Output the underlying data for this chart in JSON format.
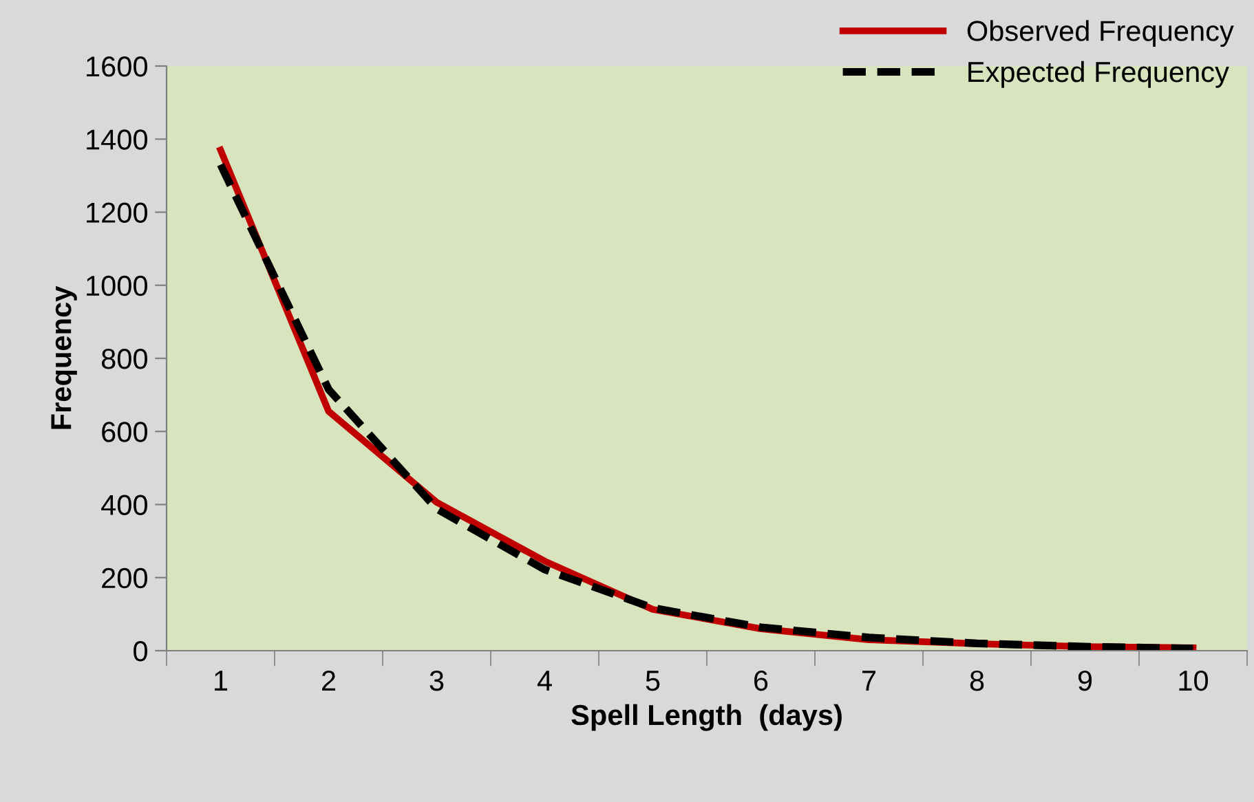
{
  "chart_data": {
    "type": "line",
    "xlabel": "Spell Length  (days)",
    "ylabel": "Frequency",
    "categories": [
      "1",
      "2",
      "3",
      "4",
      "5",
      "6",
      "7",
      "8",
      "9",
      "10"
    ],
    "series": [
      {
        "name": "Observed Frequency",
        "color": "#c00000",
        "line_style": "solid",
        "values": [
          1370,
          655,
          406,
          245,
          113,
          60,
          30,
          19,
          11,
          8
        ]
      },
      {
        "name": "Expected Frequency",
        "color": "#000000",
        "line_style": "dashed",
        "values": [
          1330,
          715,
          388,
          222,
          117,
          64,
          36,
          20,
          11,
          6
        ]
      }
    ],
    "ylim": [
      0,
      1600
    ],
    "yticks": [
      0,
      200,
      400,
      600,
      800,
      1000,
      1200,
      1400,
      1600
    ],
    "grid": false,
    "legend": "top right",
    "marker": "none"
  }
}
